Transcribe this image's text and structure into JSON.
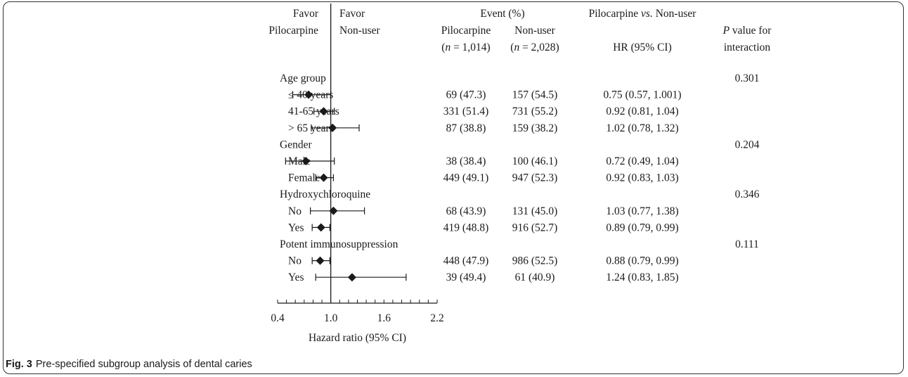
{
  "chart_data": {
    "type": "forest",
    "header": {
      "favor_left": [
        "Favor",
        "Pilocarpine"
      ],
      "favor_right": [
        "Favor",
        "Non-user"
      ],
      "event_title": "Event (%)",
      "col_pilo": "Pilocarpine",
      "col_nonuser": "Non-user",
      "n_pilo": "(n = 1,014)",
      "n_nonuser": "(n = 2,028)",
      "comparison_title": "Pilocarpine vs. Non-user",
      "hr_header": "HR (95% CI)",
      "p_header": [
        "P value for",
        "interaction"
      ]
    },
    "rows": [
      {
        "label": "Age group",
        "type": "group",
        "p": "0.301"
      },
      {
        "label": "≤ 40 years",
        "type": "sub",
        "hr": 0.75,
        "lo": 0.57,
        "hi": 1.001,
        "event_pilo": "69 (47.3)",
        "event_nonuser": "157 (54.5)",
        "hr_text": "0.75 (0.57, 1.001)"
      },
      {
        "label": "41-65 years",
        "type": "sub",
        "hr": 0.92,
        "lo": 0.81,
        "hi": 1.04,
        "event_pilo": "331 (51.4)",
        "event_nonuser": "731 (55.2)",
        "hr_text": "0.92 (0.81, 1.04)"
      },
      {
        "label": "> 65 years",
        "type": "sub",
        "hr": 1.02,
        "lo": 0.78,
        "hi": 1.32,
        "event_pilo": "87 (38.8)",
        "event_nonuser": "159 (38.2)",
        "hr_text": "1.02 (0.78, 1.32)"
      },
      {
        "label": "Gender",
        "type": "group",
        "p": "0.204"
      },
      {
        "label": "Male",
        "type": "sub",
        "hr": 0.72,
        "lo": 0.49,
        "hi": 1.04,
        "event_pilo": "38 (38.4)",
        "event_nonuser": "100 (46.1)",
        "hr_text": "0.72 (0.49, 1.04)"
      },
      {
        "label": "Female",
        "type": "sub",
        "hr": 0.92,
        "lo": 0.83,
        "hi": 1.03,
        "event_pilo": "449 (49.1)",
        "event_nonuser": "947 (52.3)",
        "hr_text": "0.92 (0.83, 1.03)"
      },
      {
        "label": "Hydroxychloroquine",
        "type": "group",
        "p": "0.346"
      },
      {
        "label": "No",
        "type": "sub",
        "hr": 1.03,
        "lo": 0.77,
        "hi": 1.38,
        "event_pilo": "68 (43.9)",
        "event_nonuser": "131 (45.0)",
        "hr_text": "1.03 (0.77, 1.38)"
      },
      {
        "label": "Yes",
        "type": "sub",
        "hr": 0.89,
        "lo": 0.79,
        "hi": 0.99,
        "event_pilo": "419 (48.8)",
        "event_nonuser": "916 (52.7)",
        "hr_text": "0.89 (0.79, 0.99)"
      },
      {
        "label": "Potent immunosuppression",
        "type": "group",
        "p": "0.111"
      },
      {
        "label": "No",
        "type": "sub",
        "hr": 0.88,
        "lo": 0.79,
        "hi": 0.99,
        "event_pilo": "448 (47.9)",
        "event_nonuser": "986 (52.5)",
        "hr_text": "0.88 (0.79, 0.99)"
      },
      {
        "label": "Yes",
        "type": "sub",
        "hr": 1.24,
        "lo": 0.83,
        "hi": 1.85,
        "event_pilo": "39 (49.4)",
        "event_nonuser": "61 (40.9)",
        "hr_text": "1.24 (0.83, 1.85)"
      }
    ],
    "reference_line": 1.0,
    "xaxis": {
      "label": "Hazard ratio (95% CI)",
      "range": [
        0.4,
        2.2
      ],
      "ticks": [
        "0.4",
        "1.0",
        "1.6",
        "2.2"
      ],
      "tick_values": [
        0.4,
        1.0,
        1.6,
        2.2
      ],
      "minor_step": 0.1
    }
  },
  "caption": {
    "label": "Fig. 3",
    "text": "Pre-specified subgroup analysis of dental caries"
  },
  "colors": {
    "ink": "#1a1a1a",
    "frame": "#333333"
  }
}
